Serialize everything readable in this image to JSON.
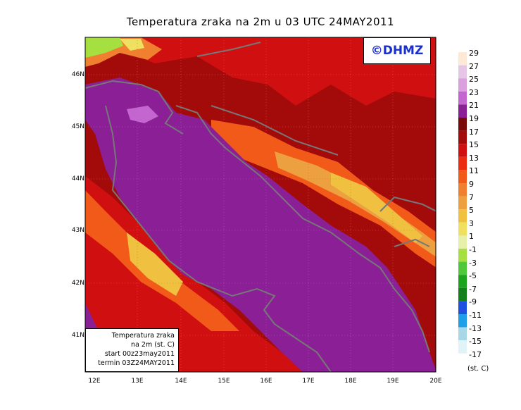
{
  "title": "Temperatura zraka na 2m u 03 UTC 24MAY2011",
  "logo": "©DHMZ",
  "lat_labels": [
    "46N",
    "45N",
    "44N",
    "43N",
    "42N",
    "41N"
  ],
  "lon_labels": [
    "12E",
    "13E",
    "14E",
    "15E",
    "16E",
    "17E",
    "18E",
    "19E",
    "20E"
  ],
  "info": {
    "line1": "Temperatura zraka",
    "line2": "na 2m (st. C)",
    "line3": "start 00z23may2011",
    "line4": "termin 03Z24MAY2011"
  },
  "legend": {
    "units": "(st. C)",
    "labels": [
      "29",
      "27",
      "25",
      "23",
      "21",
      "19",
      "17",
      "15",
      "13",
      "11",
      "9",
      "7",
      "5",
      "3",
      "1",
      "-1",
      "-3",
      "-5",
      "-7",
      "-9",
      "-11",
      "-13",
      "-15",
      "-17"
    ],
    "colors": [
      "#fde9d6",
      "#e6c6e6",
      "#d9a0dd",
      "#c366cf",
      "#8a1f96",
      "#7a0a0a",
      "#a30b0b",
      "#d01010",
      "#ec2c10",
      "#f25a1a",
      "#f08030",
      "#eda040",
      "#f0c040",
      "#f0e060",
      "#e6f0a8",
      "#a6e040",
      "#4fc83a",
      "#1ca41c",
      "#13801a",
      "#2050e0",
      "#1ea0e8",
      "#a8d8e6",
      "#e0f4f8"
    ]
  }
}
